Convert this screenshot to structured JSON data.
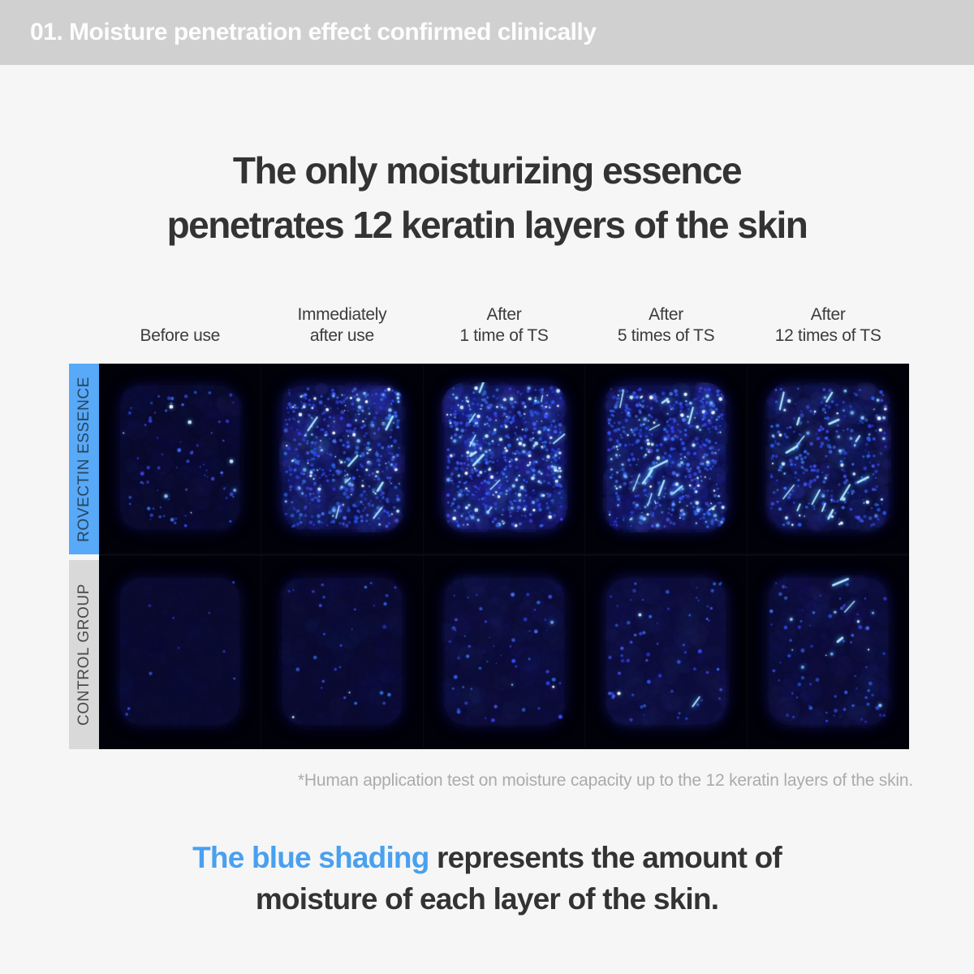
{
  "header": {
    "title": "01. Moisture penetration effect confirmed clinically"
  },
  "title": {
    "line1": "The only moisturizing essence",
    "line2": "penetrates 12 keratin layers of the skin"
  },
  "figure": {
    "columns": [
      {
        "lines": [
          "Before use"
        ]
      },
      {
        "lines": [
          "Immediately",
          "after use"
        ]
      },
      {
        "lines": [
          "After",
          "1 time of TS"
        ]
      },
      {
        "lines": [
          "After",
          "5 times of TS"
        ]
      },
      {
        "lines": [
          "After",
          "12 times of TS"
        ]
      }
    ],
    "rows": [
      {
        "label": "ROVECTIN ESSENCE",
        "label_bg": "#58a9f7",
        "cells": [
          {
            "name": "rovectin-before-use",
            "base": [
              9,
              9,
              44
            ],
            "mottle": 0.18,
            "dots": 75,
            "bright": 0.07,
            "streaks": 0,
            "seed": 11
          },
          {
            "name": "rovectin-immediately-after",
            "base": [
              14,
              16,
              74
            ],
            "mottle": 0.55,
            "dots": 500,
            "bright": 0.2,
            "streaks": 7,
            "seed": 22
          },
          {
            "name": "rovectin-after-1-ts",
            "base": [
              16,
              18,
              86
            ],
            "mottle": 0.55,
            "dots": 580,
            "bright": 0.26,
            "streaks": 9,
            "seed": 33
          },
          {
            "name": "rovectin-after-5-ts",
            "base": [
              14,
              16,
              78
            ],
            "mottle": 0.55,
            "dots": 530,
            "bright": 0.24,
            "streaks": 12,
            "seed": 44
          },
          {
            "name": "rovectin-after-12-ts",
            "base": [
              12,
              14,
              62
            ],
            "mottle": 0.45,
            "dots": 280,
            "bright": 0.18,
            "streaks": 14,
            "seed": 55
          }
        ]
      },
      {
        "label": "CONTROL GROUP",
        "label_bg": "#d9d9d9",
        "cells": [
          {
            "name": "control-before-use",
            "base": [
              10,
              10,
              46
            ],
            "mottle": 0.1,
            "dots": 10,
            "bright": 0.0,
            "streaks": 0,
            "seed": 66
          },
          {
            "name": "control-immediately-after",
            "base": [
              10,
              10,
              48
            ],
            "mottle": 0.14,
            "dots": 30,
            "bright": 0.03,
            "streaks": 0,
            "seed": 77
          },
          {
            "name": "control-after-1-ts",
            "base": [
              11,
              11,
              54
            ],
            "mottle": 0.2,
            "dots": 55,
            "bright": 0.05,
            "streaks": 0,
            "seed": 88
          },
          {
            "name": "control-after-5-ts",
            "base": [
              12,
              12,
              58
            ],
            "mottle": 0.2,
            "dots": 65,
            "bright": 0.07,
            "streaks": 1,
            "seed": 99
          },
          {
            "name": "control-after-12-ts",
            "base": [
              11,
              11,
              54
            ],
            "mottle": 0.2,
            "dots": 80,
            "bright": 0.1,
            "streaks": 3,
            "seed": 110
          }
        ]
      }
    ],
    "footnote": "*Human application test on moisture capacity up to the 12 keratin layers of the skin."
  },
  "statement": {
    "highlight": "The blue shading",
    "line1_rest": " represents the amount of",
    "line2": "moisture of each layer of the skin.",
    "highlight_color": "#49a0ef"
  },
  "colors": {
    "header_bar": "#d0d0d0",
    "page_bg": "#f6f6f7",
    "accent_blue": "#58a9f7",
    "label_gray": "#d9d9d9",
    "text_dark": "#333333",
    "footnote_gray": "#ababab"
  }
}
